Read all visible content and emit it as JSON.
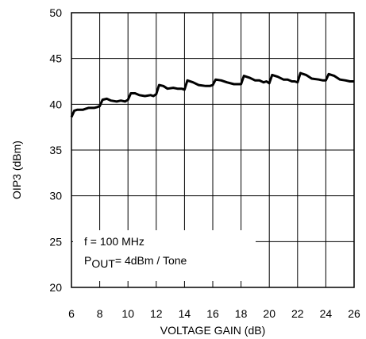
{
  "chart_data": {
    "type": "line",
    "title": "",
    "xlabel": "VOLTAGE GAIN (dB)",
    "ylabel": "OIP3 (dBm)",
    "xlim": [
      6,
      26
    ],
    "ylim": [
      20,
      50
    ],
    "xticks": [
      6,
      8,
      10,
      12,
      14,
      16,
      18,
      20,
      22,
      24,
      26
    ],
    "yticks": [
      20,
      25,
      30,
      35,
      40,
      45,
      50
    ],
    "grid": true,
    "legend": "none",
    "annotations": {
      "line1": "f = 100 MHz",
      "line2_prefix": "P",
      "line2_sub": "OUT",
      "line2_suffix": "= 4dBm / Tone"
    },
    "series": [
      {
        "color": "#000000",
        "x": [
          6.0,
          6.2,
          6.4,
          6.8,
          7.0,
          7.2,
          7.6,
          7.85,
          8.0,
          8.2,
          8.5,
          8.8,
          9.2,
          9.5,
          9.8,
          10.0,
          10.2,
          10.5,
          10.8,
          11.2,
          11.6,
          11.8,
          12.0,
          12.2,
          12.5,
          12.8,
          13.2,
          13.5,
          13.8,
          14.0,
          14.2,
          14.6,
          15.0,
          15.5,
          15.8,
          16.0,
          16.2,
          16.6,
          17.0,
          17.5,
          17.8,
          18.0,
          18.2,
          18.6,
          19.0,
          19.3,
          19.6,
          19.8,
          20.0,
          20.2,
          20.6,
          21.0,
          21.3,
          21.6,
          21.8,
          22.0,
          22.2,
          22.6,
          23.0,
          23.5,
          23.8,
          24.0,
          24.2,
          24.6,
          25.0,
          25.4,
          25.7,
          26.0
        ],
        "y": [
          38.6,
          39.3,
          39.4,
          39.4,
          39.5,
          39.6,
          39.6,
          39.7,
          39.8,
          40.5,
          40.6,
          40.4,
          40.3,
          40.4,
          40.3,
          40.5,
          41.2,
          41.2,
          41.0,
          40.9,
          41.0,
          40.9,
          41.1,
          42.1,
          42.0,
          41.7,
          41.8,
          41.7,
          41.7,
          41.6,
          42.6,
          42.4,
          42.1,
          42.0,
          42.0,
          42.1,
          42.7,
          42.6,
          42.4,
          42.2,
          42.2,
          42.2,
          43.1,
          42.9,
          42.6,
          42.6,
          42.4,
          42.5,
          42.3,
          43.2,
          43.0,
          42.7,
          42.7,
          42.5,
          42.5,
          42.4,
          43.4,
          43.2,
          42.8,
          42.7,
          42.6,
          42.6,
          43.3,
          43.1,
          42.7,
          42.6,
          42.5,
          42.5
        ]
      }
    ]
  }
}
